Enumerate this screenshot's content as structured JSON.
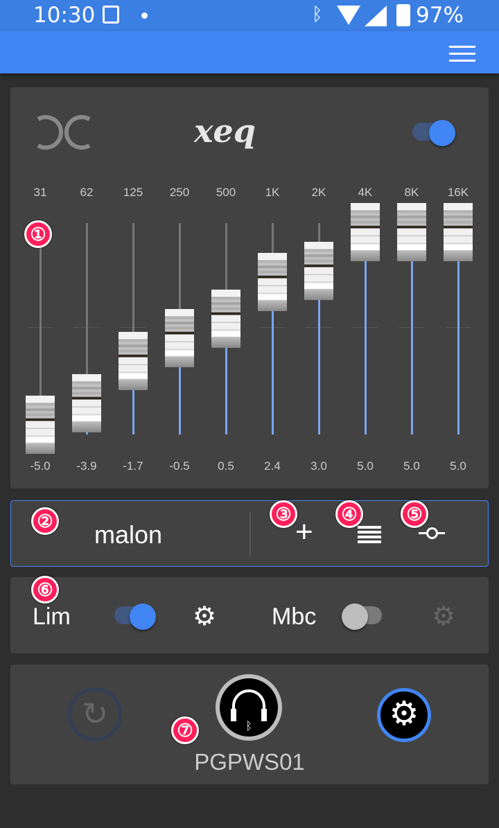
{
  "status_bar": {
    "time": "10:30",
    "battery": "97%"
  },
  "app_bar": {
    "menu_icon": "hamburger-menu-icon"
  },
  "eq": {
    "logo_text": "xeq",
    "enabled": true,
    "bands": [
      {
        "freq": "31",
        "value": "-5.0"
      },
      {
        "freq": "62",
        "value": "-3.9"
      },
      {
        "freq": "125",
        "value": "-1.7"
      },
      {
        "freq": "250",
        "value": "-0.5"
      },
      {
        "freq": "500",
        "value": "0.5"
      },
      {
        "freq": "1K",
        "value": "2.4"
      },
      {
        "freq": "2K",
        "value": "3.0"
      },
      {
        "freq": "4K",
        "value": "5.0"
      },
      {
        "freq": "8K",
        "value": "5.0"
      },
      {
        "freq": "16K",
        "value": "5.0"
      }
    ],
    "range": [
      -5,
      5
    ]
  },
  "preset": {
    "name": "malon"
  },
  "effects": {
    "lim_label": "Lim",
    "lim_enabled": true,
    "mbc_label": "Mbc",
    "mbc_enabled": false
  },
  "device": {
    "name": "PGPWS01"
  },
  "annotations": [
    "①",
    "②",
    "③",
    "④",
    "⑤",
    "⑥",
    "⑦"
  ],
  "colors": {
    "accent": "#4285f4",
    "card": "#424242",
    "background": "#2e2e2e"
  }
}
